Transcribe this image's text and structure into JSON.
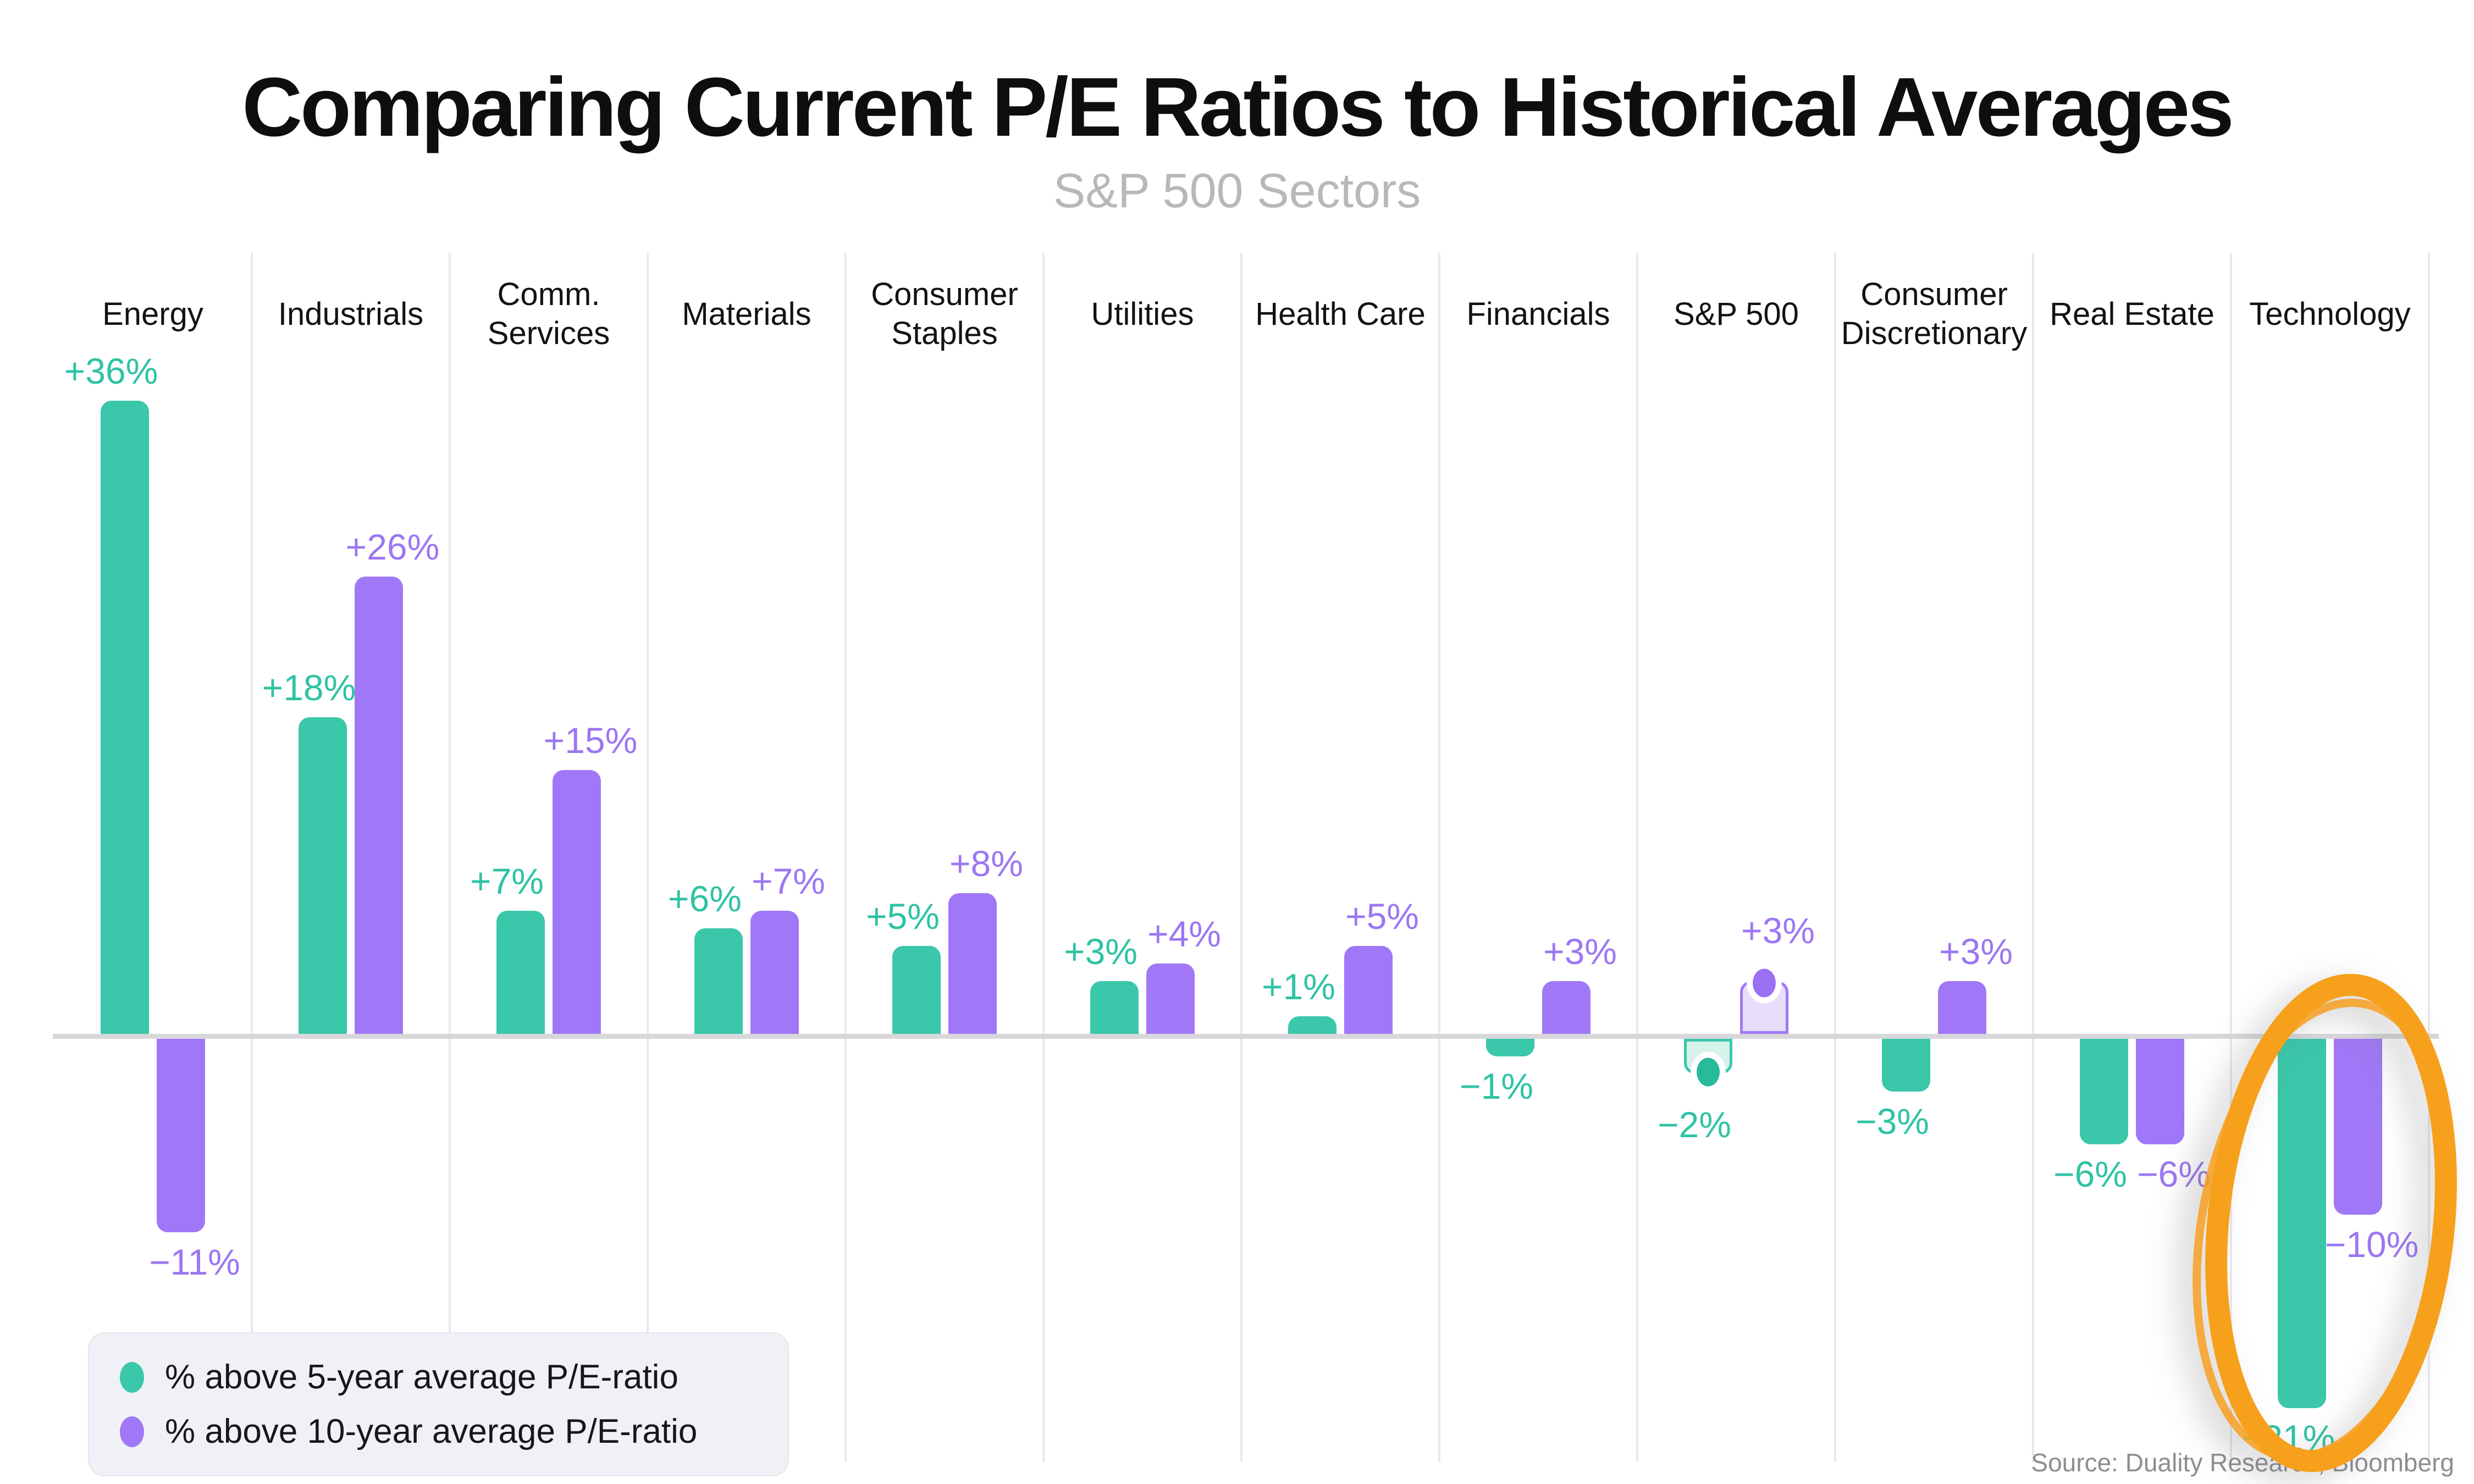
{
  "title": "Comparing Current P/E Ratios to Historical Averages",
  "subtitle": "S&P 500 Sectors",
  "source": "Source: Duality Research, Bloomberg",
  "colors": {
    "teal_bar": "#3ac7aa",
    "purple_bar": "#a078f7",
    "teal_light_fill": "#d6f2eb",
    "purple_light_fill": "#e7defb",
    "teal_label": "#2ec3a4",
    "purple_label": "#9c77f3",
    "zero_line": "#d8d8db",
    "column_separator": "#e9e9ec",
    "annotation_orange": "#f6a01e",
    "legend_background": "#f0f1f6",
    "subtitle_gray": "#b8b8bc",
    "source_gray": "#8d8d92"
  },
  "chart_data": {
    "type": "bar",
    "title": "Comparing Current P/E Ratios to Historical Averages",
    "subtitle": "S&P 500 Sectors",
    "unit": "%",
    "categories": [
      "Energy",
      "Industrials",
      "Comm. Services",
      "Materials",
      "Consumer Staples",
      "Utilities",
      "Health Care",
      "Financials",
      "S&P 500",
      "Consumer Discretionary",
      "Real Estate",
      "Technology"
    ],
    "series": [
      {
        "name": "% above 5-year average P/E-ratio",
        "color": "#3ac7aa",
        "values": [
          36,
          18,
          7,
          6,
          5,
          3,
          1,
          -1,
          -2,
          -3,
          -6,
          -21
        ],
        "labels": [
          "+36%",
          "+18%",
          "+7%",
          "+6%",
          "+5%",
          "+3%",
          "+1%",
          "−1%",
          "−2%",
          "−3%",
          "−6%",
          "−21%"
        ]
      },
      {
        "name": "% above 10-year average P/E-ratio",
        "color": "#a078f7",
        "values": [
          -11,
          26,
          15,
          7,
          8,
          4,
          5,
          3,
          3,
          3,
          -6,
          -10
        ],
        "labels": [
          "−11%",
          "+26%",
          "+15%",
          "+7%",
          "+8%",
          "+4%",
          "+5%",
          "+3%",
          "+3%",
          "+3%",
          "−6%",
          "−10%"
        ]
      }
    ],
    "highlighted_category": "S&P 500",
    "highlighted_style": "light fill with colored outline and end-point dot",
    "circled_category": "Technology",
    "circle_annotation_color": "#f6a01e",
    "ylim": [
      -22,
      37
    ],
    "zero_line": true,
    "gridlines": "vertical column separators only",
    "legend_position": "bottom-left",
    "value_labels_shown": true
  }
}
